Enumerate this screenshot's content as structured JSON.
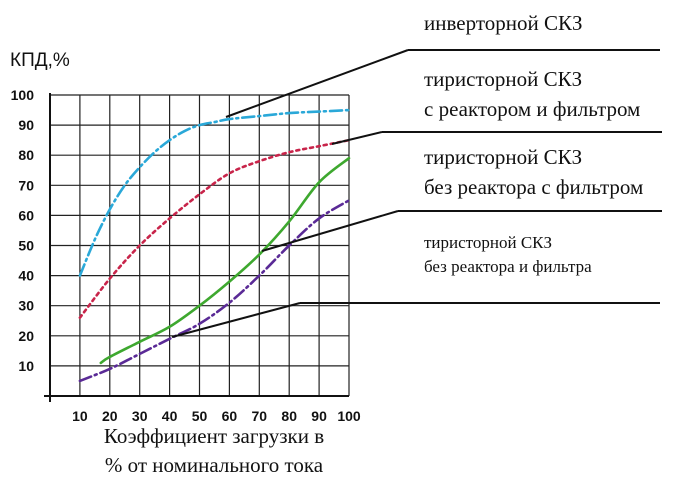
{
  "chart_data": {
    "type": "line",
    "ylabel": "КПД,%",
    "xlabel_line1": "Коэффициент загрузки в",
    "xlabel_line2": "% от номинального тока",
    "x_ticks": [
      "10",
      "20",
      "30",
      "40",
      "50",
      "60",
      "70",
      "80",
      "90",
      "100"
    ],
    "y_ticks": [
      "10",
      "20",
      "30",
      "40",
      "50",
      "60",
      "70",
      "80",
      "90",
      "100"
    ],
    "xlim": [
      0,
      100
    ],
    "ylim": [
      0,
      100
    ],
    "grid": true,
    "series": [
      {
        "name": "инверторной СКЗ",
        "color": "#2aa8d8",
        "style": "dash-dot",
        "x": [
          10,
          15,
          20,
          25,
          30,
          35,
          40,
          45,
          50,
          55,
          60,
          70,
          80,
          90,
          100
        ],
        "y": [
          40,
          52,
          62,
          70,
          76,
          81,
          85,
          88,
          90,
          91,
          92,
          93,
          94,
          94.5,
          95
        ]
      },
      {
        "name": "тиристорной СКЗ с реактором и фильтром",
        "color": "#c8244a",
        "style": "dotted",
        "x": [
          10,
          20,
          30,
          40,
          50,
          60,
          70,
          80,
          90,
          100
        ],
        "y": [
          26,
          39,
          50,
          59,
          67,
          74,
          78,
          81,
          83,
          85
        ]
      },
      {
        "name": "тиристорной СКЗ без реактора с фильтром",
        "color": "#3ea82f",
        "style": "solid",
        "x": [
          17,
          20,
          30,
          40,
          50,
          60,
          70,
          80,
          90,
          100
        ],
        "y": [
          11,
          13,
          18,
          23,
          30,
          38,
          47,
          58,
          71,
          79
        ]
      },
      {
        "name": "тиристорной СКЗ без реактора и фильтра",
        "color": "#5a2a96",
        "style": "dash-dot",
        "x": [
          10,
          20,
          30,
          40,
          50,
          60,
          70,
          80,
          90,
          100
        ],
        "y": [
          5,
          9,
          14,
          19,
          24,
          31,
          40,
          50,
          59,
          65
        ]
      }
    ],
    "annotations": [
      {
        "lines": [
          "инверторной СКЗ"
        ],
        "series": 0
      },
      {
        "lines": [
          "тиристорной СКЗ",
          "с реактором и фильтром"
        ],
        "series": 1
      },
      {
        "lines": [
          "тиристорной СКЗ",
          "без реактора с фильтром"
        ],
        "series": 2
      },
      {
        "lines": [
          "тиристорной СКЗ",
          "без реактора и фильтра"
        ],
        "series": 3
      }
    ]
  }
}
